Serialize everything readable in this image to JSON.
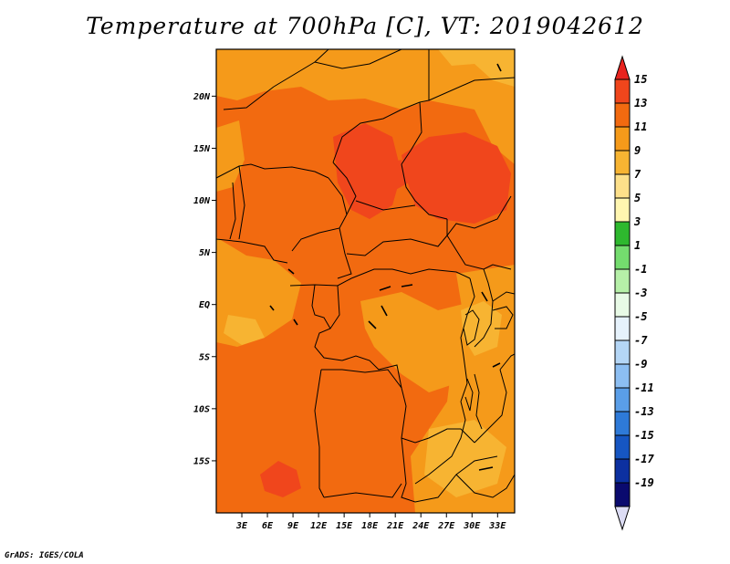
{
  "title": "Temperature at 700hPa [C], VT: 2019042612",
  "credit": "GrADS: IGES/COLA",
  "map": {
    "lon_range": [
      0,
      35
    ],
    "lat_range": [
      -20,
      24.5
    ],
    "lat_ticks": [
      "20N",
      "15N",
      "10N",
      "5N",
      "EQ",
      "5S",
      "10S",
      "15S"
    ],
    "lon_ticks": [
      "3E",
      "6E",
      "9E",
      "12E",
      "15E",
      "18E",
      "21E",
      "24E",
      "27E",
      "30E",
      "33E"
    ],
    "dominant_value_range_c": [
      7,
      15
    ],
    "colors": {
      "background_main": "#f26a10",
      "warmest": "#f0461c",
      "cool_patch": "#f59a1a",
      "coolest_patch": "#f7b432",
      "border": "#000000"
    }
  },
  "colorbar": {
    "labels": [
      "15",
      "13",
      "11",
      "9",
      "7",
      "5",
      "3",
      "1",
      "-1",
      "-3",
      "-5",
      "-7",
      "-9",
      "-11",
      "-13",
      "-15",
      "-17",
      "-19"
    ],
    "colors": [
      "#e8231e",
      "#f0461c",
      "#f26a10",
      "#f59a1a",
      "#f7b432",
      "#fde08a",
      "#fff6b0",
      "#2eb82e",
      "#74dc6e",
      "#b6f0a8",
      "#e8fae6",
      "#e6f2fc",
      "#b4d6f6",
      "#8cbef2",
      "#5a9ee8",
      "#2e7ad8",
      "#1656c2",
      "#0c30a0",
      "#0a0a6e",
      "#dcdcf4"
    ]
  }
}
